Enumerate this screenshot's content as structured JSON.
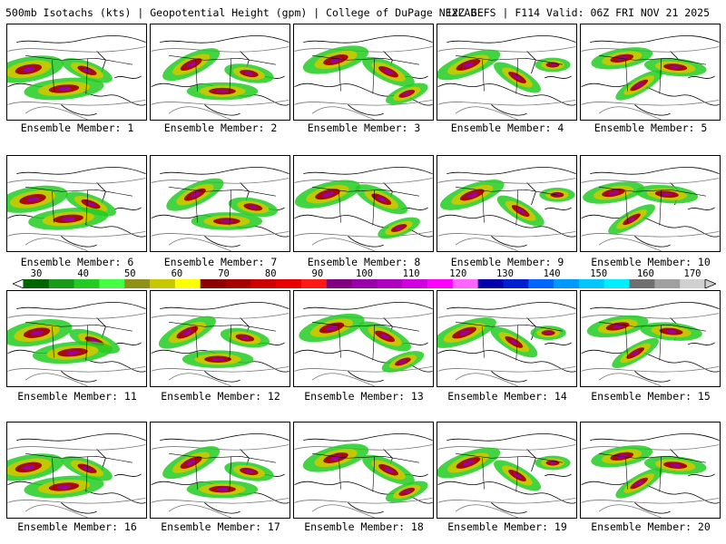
{
  "header": {
    "title": "500mb Isotachs (kts) | Geopotential Height (gpm) | College of DuPage NEXLAB",
    "run_info": "12Z GEFS | F114 Valid: 06Z FRI NOV 21 2025"
  },
  "members": [
    {
      "label": "Ensemble Member: 1"
    },
    {
      "label": "Ensemble Member: 2"
    },
    {
      "label": "Ensemble Member: 3"
    },
    {
      "label": "Ensemble Member: 4"
    },
    {
      "label": "Ensemble Member: 5"
    },
    {
      "label": "Ensemble Member: 6"
    },
    {
      "label": "Ensemble Member: 7"
    },
    {
      "label": "Ensemble Member: 8"
    },
    {
      "label": "Ensemble Member: 9"
    },
    {
      "label": "Ensemble Member: 10"
    },
    {
      "label": "Ensemble Member: 11"
    },
    {
      "label": "Ensemble Member: 12"
    },
    {
      "label": "Ensemble Member: 13"
    },
    {
      "label": "Ensemble Member: 14"
    },
    {
      "label": "Ensemble Member: 15"
    },
    {
      "label": "Ensemble Member: 16"
    },
    {
      "label": "Ensemble Member: 17"
    },
    {
      "label": "Ensemble Member: 18"
    },
    {
      "label": "Ensemble Member: 19"
    },
    {
      "label": "Ensemble Member: 20"
    }
  ],
  "colorbar": {
    "labels": [
      "30",
      "40",
      "50",
      "60",
      "70",
      "80",
      "90",
      "100",
      "110",
      "120",
      "130",
      "140",
      "150",
      "160",
      "170"
    ],
    "colors": [
      "#006400",
      "#1a9a1a",
      "#22cc22",
      "#44ff44",
      "#909018",
      "#c8c800",
      "#ffff00",
      "#8b0000",
      "#a80000",
      "#cc0000",
      "#e60000",
      "#ff1a1a",
      "#800080",
      "#9900aa",
      "#b000c0",
      "#d000e0",
      "#ff00ff",
      "#ff66ff",
      "#0000aa",
      "#0020d0",
      "#0066ff",
      "#0099ff",
      "#00c8ff",
      "#00eeff",
      "#707070",
      "#a0a0a0",
      "#d0d0d0"
    ]
  },
  "icons": {
    "scale_left": "triangle-left-icon",
    "scale_right": "triangle-right-icon"
  }
}
